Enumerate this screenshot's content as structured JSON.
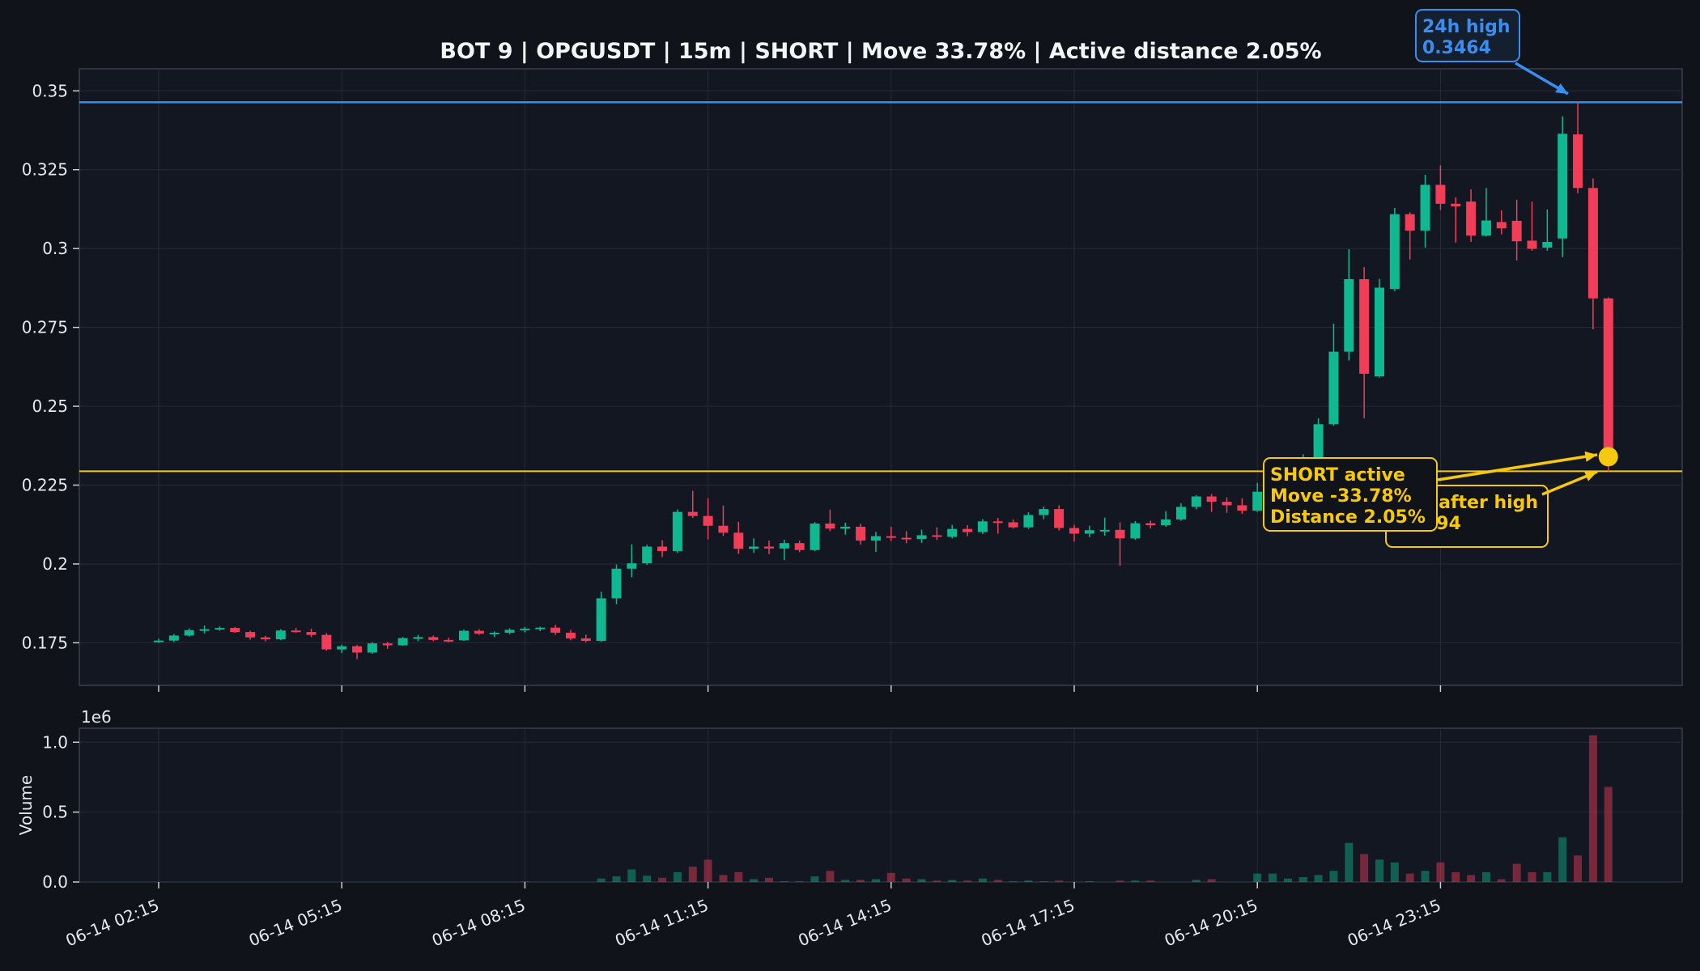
{
  "chart_data": {
    "type": "candlestick",
    "title": "BOT 9 | OPGUSDT | 15m | SHORT | Move 33.78% | Active distance 2.05%",
    "price_axis": {
      "ylim": [
        0.1615,
        0.357
      ],
      "ticks": [
        0.175,
        0.2,
        0.225,
        0.25,
        0.275,
        0.3,
        0.325,
        0.35
      ],
      "tick_labels": [
        "0.175",
        "0.2",
        "0.225",
        "0.25",
        "0.275",
        "0.3",
        "0.325",
        "0.35"
      ]
    },
    "volume_axis": {
      "ylabel": "Volume",
      "scale_label": "1e6",
      "ylim": [
        0,
        1.1
      ],
      "ticks": [
        0,
        0.5,
        1.0
      ],
      "tick_labels": [
        "0.0",
        "0.5",
        "1.0"
      ]
    },
    "x_axis": {
      "tick_bars": [
        0,
        12,
        24,
        36,
        48,
        60,
        72,
        84
      ],
      "tick_labels": [
        "06-14 02:15",
        "06-14 05:15",
        "06-14 08:15",
        "06-14 11:15",
        "06-14 14:15",
        "06-14 17:15",
        "06-14 20:15",
        "06-14 23:15"
      ]
    },
    "grid": true,
    "colors": {
      "up": "#0fb891",
      "down": "#f23d58",
      "high_line": "#3a8ef0",
      "active_line": "#f6c90e",
      "background": "#10131a",
      "panel": "#131722"
    },
    "levels": {
      "high_24h": 0.3464,
      "active": 0.2294
    },
    "marker": {
      "bar": 95,
      "price": 0.234
    },
    "annotations": {
      "high": {
        "lines": [
          "24h high",
          "0.3464"
        ]
      },
      "low": {
        "lines": [
          "Low after high",
          "0.2294"
        ]
      },
      "active": {
        "lines": [
          "SHORT active",
          "Move -33.78%",
          "Distance 2.05%"
        ]
      }
    },
    "candles": [
      [
        0.1752,
        0.1763,
        0.175,
        0.1757,
        0.0
      ],
      [
        0.1757,
        0.1778,
        0.1753,
        0.1773,
        0.0
      ],
      [
        0.1773,
        0.1796,
        0.177,
        0.179,
        0.0
      ],
      [
        0.179,
        0.1805,
        0.178,
        0.1793,
        0.0
      ],
      [
        0.1793,
        0.1802,
        0.1788,
        0.1797,
        0.0
      ],
      [
        0.1797,
        0.18,
        0.1782,
        0.1784,
        0.0
      ],
      [
        0.1784,
        0.1788,
        0.176,
        0.1767,
        0.0
      ],
      [
        0.1767,
        0.1772,
        0.1755,
        0.1761,
        0.0
      ],
      [
        0.1761,
        0.1793,
        0.1758,
        0.1789,
        0.0
      ],
      [
        0.1789,
        0.1797,
        0.1782,
        0.1784,
        0.0
      ],
      [
        0.1784,
        0.1795,
        0.1768,
        0.1775,
        0.0
      ],
      [
        0.1775,
        0.1781,
        0.1725,
        0.1729,
        0.0
      ],
      [
        0.1729,
        0.1744,
        0.1718,
        0.1739,
        0.0
      ],
      [
        0.1739,
        0.1743,
        0.1698,
        0.1719,
        0.0
      ],
      [
        0.1719,
        0.1752,
        0.1715,
        0.1748,
        0.0
      ],
      [
        0.1748,
        0.1753,
        0.1731,
        0.1742,
        0.0
      ],
      [
        0.1742,
        0.1768,
        0.174,
        0.1765,
        0.0
      ],
      [
        0.1765,
        0.1775,
        0.1755,
        0.1768,
        0.0
      ],
      [
        0.1768,
        0.1773,
        0.1755,
        0.1759,
        0.0
      ],
      [
        0.1759,
        0.1766,
        0.1752,
        0.1758,
        0.0
      ],
      [
        0.1758,
        0.1792,
        0.1756,
        0.1788,
        0.0
      ],
      [
        0.1788,
        0.1793,
        0.1775,
        0.1779,
        0.0
      ],
      [
        0.1779,
        0.1786,
        0.1768,
        0.1782,
        0.0
      ],
      [
        0.1782,
        0.1796,
        0.1777,
        0.1791,
        0.0
      ],
      [
        0.1791,
        0.18,
        0.1783,
        0.1795,
        0.003
      ],
      [
        0.1795,
        0.1801,
        0.1787,
        0.1798,
        0.0
      ],
      [
        0.1798,
        0.1807,
        0.1775,
        0.1782,
        0.0
      ],
      [
        0.1782,
        0.1791,
        0.1758,
        0.1764,
        0.0
      ],
      [
        0.1764,
        0.1776,
        0.1752,
        0.1756,
        0.0
      ],
      [
        0.1756,
        0.1912,
        0.1753,
        0.1891,
        0.025
      ],
      [
        0.1891,
        0.1998,
        0.1872,
        0.1985,
        0.04
      ],
      [
        0.1985,
        0.2062,
        0.1958,
        0.2002,
        0.09
      ],
      [
        0.2002,
        0.2061,
        0.1997,
        0.2055,
        0.045
      ],
      [
        0.2055,
        0.2075,
        0.2022,
        0.2041,
        0.03
      ],
      [
        0.2041,
        0.2173,
        0.2035,
        0.2165,
        0.07
      ],
      [
        0.2165,
        0.2232,
        0.2146,
        0.2152,
        0.11
      ],
      [
        0.2152,
        0.2208,
        0.2078,
        0.2121,
        0.16
      ],
      [
        0.2121,
        0.2185,
        0.2089,
        0.2099,
        0.05
      ],
      [
        0.2099,
        0.2134,
        0.2032,
        0.2048,
        0.07
      ],
      [
        0.2048,
        0.2081,
        0.2035,
        0.2055,
        0.02
      ],
      [
        0.2055,
        0.2074,
        0.2031,
        0.2049,
        0.03
      ],
      [
        0.2049,
        0.2077,
        0.2012,
        0.2066,
        0.005
      ],
      [
        0.2066,
        0.2074,
        0.2037,
        0.2044,
        0.005
      ],
      [
        0.2044,
        0.2133,
        0.2041,
        0.2128,
        0.04
      ],
      [
        0.2128,
        0.2172,
        0.2104,
        0.2112,
        0.08
      ],
      [
        0.2112,
        0.2131,
        0.2093,
        0.2118,
        0.015
      ],
      [
        0.2118,
        0.2128,
        0.2061,
        0.2074,
        0.015
      ],
      [
        0.2074,
        0.2102,
        0.2038,
        0.2088,
        0.02
      ],
      [
        0.2088,
        0.2118,
        0.2073,
        0.2083,
        0.065
      ],
      [
        0.2083,
        0.2104,
        0.2066,
        0.2079,
        0.025
      ],
      [
        0.2079,
        0.2109,
        0.2067,
        0.2091,
        0.02
      ],
      [
        0.2091,
        0.2116,
        0.2076,
        0.2086,
        0.01
      ],
      [
        0.2086,
        0.2124,
        0.2081,
        0.2111,
        0.015
      ],
      [
        0.2111,
        0.2123,
        0.2088,
        0.2101,
        0.01
      ],
      [
        0.2101,
        0.2142,
        0.2095,
        0.2135,
        0.025
      ],
      [
        0.2135,
        0.2146,
        0.2096,
        0.2132,
        0.015
      ],
      [
        0.2132,
        0.2141,
        0.2112,
        0.2116,
        0.005
      ],
      [
        0.2116,
        0.2164,
        0.2111,
        0.2155,
        0.01
      ],
      [
        0.2155,
        0.2182,
        0.2142,
        0.2174,
        0.005
      ],
      [
        0.2174,
        0.2186,
        0.2106,
        0.2114,
        0.01
      ],
      [
        0.2114,
        0.2124,
        0.2071,
        0.2096,
        0.0
      ],
      [
        0.2096,
        0.2121,
        0.2085,
        0.2107,
        0.005
      ],
      [
        0.2107,
        0.2147,
        0.2089,
        0.2108,
        0.0
      ],
      [
        0.2108,
        0.2132,
        0.1994,
        0.2081,
        0.01
      ],
      [
        0.2081,
        0.2136,
        0.2077,
        0.2129,
        0.01
      ],
      [
        0.2129,
        0.2137,
        0.2112,
        0.2123,
        0.01
      ],
      [
        0.2123,
        0.2167,
        0.2118,
        0.2141,
        0.0
      ],
      [
        0.2141,
        0.2192,
        0.2137,
        0.2181,
        0.0
      ],
      [
        0.2181,
        0.2218,
        0.2173,
        0.2214,
        0.015
      ],
      [
        0.2214,
        0.2222,
        0.2165,
        0.2197,
        0.02
      ],
      [
        0.2197,
        0.2211,
        0.2162,
        0.2186,
        0.0
      ],
      [
        0.2186,
        0.2208,
        0.2159,
        0.2169,
        0.0
      ],
      [
        0.2169,
        0.2257,
        0.2165,
        0.2229,
        0.06
      ],
      [
        0.2229,
        0.2292,
        0.2193,
        0.2281,
        0.06
      ],
      [
        0.2281,
        0.2337,
        0.2265,
        0.2318,
        0.025
      ],
      [
        0.2318,
        0.2348,
        0.2286,
        0.2337,
        0.035
      ],
      [
        0.2337,
        0.2462,
        0.2332,
        0.2443,
        0.05
      ],
      [
        0.2443,
        0.2762,
        0.2438,
        0.2673,
        0.08
      ],
      [
        0.2673,
        0.2998,
        0.2645,
        0.2903,
        0.28
      ],
      [
        0.2903,
        0.2941,
        0.2462,
        0.2603,
        0.2
      ],
      [
        0.2595,
        0.2904,
        0.2591,
        0.2876,
        0.16
      ],
      [
        0.2872,
        0.3129,
        0.2865,
        0.3109,
        0.14
      ],
      [
        0.3109,
        0.3115,
        0.2965,
        0.3057,
        0.06
      ],
      [
        0.3057,
        0.3234,
        0.3003,
        0.3202,
        0.08
      ],
      [
        0.3202,
        0.3264,
        0.3122,
        0.3142,
        0.14
      ],
      [
        0.3142,
        0.3162,
        0.3019,
        0.3134,
        0.07
      ],
      [
        0.3149,
        0.3188,
        0.3021,
        0.3041,
        0.05
      ],
      [
        0.3041,
        0.3192,
        0.3038,
        0.3089,
        0.07
      ],
      [
        0.3084,
        0.3121,
        0.3045,
        0.3064,
        0.02
      ],
      [
        0.3088,
        0.3155,
        0.2962,
        0.3023,
        0.13
      ],
      [
        0.3025,
        0.3149,
        0.2993,
        0.2999,
        0.07
      ],
      [
        0.3003,
        0.3124,
        0.2993,
        0.3021,
        0.07
      ],
      [
        0.3032,
        0.3419,
        0.2973,
        0.3364,
        0.32
      ],
      [
        0.3362,
        0.3464,
        0.3175,
        0.3192,
        0.19
      ],
      [
        0.3192,
        0.3222,
        0.2744,
        0.2842,
        1.05
      ],
      [
        0.2842,
        0.2845,
        0.2294,
        0.234,
        0.68
      ]
    ]
  }
}
